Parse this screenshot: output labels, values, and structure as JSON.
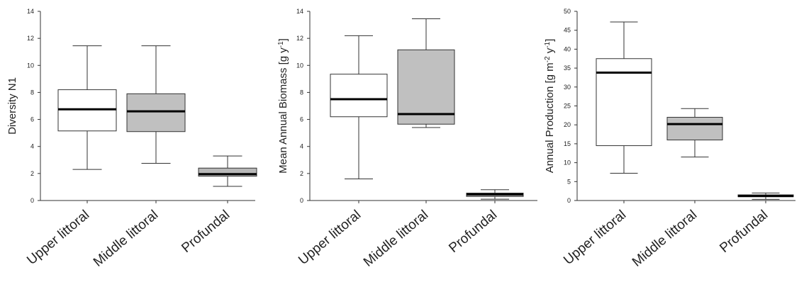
{
  "chart_data": [
    {
      "type": "box",
      "xlabel": "",
      "ylabel": "Diversity N1",
      "ylim": [
        0,
        14
      ],
      "yticks": [
        0,
        2,
        4,
        6,
        8,
        10,
        12,
        14
      ],
      "categories": [
        "Upper littoral",
        "Middle littoral",
        "Profundal"
      ],
      "boxes": [
        {
          "category": "Upper littoral",
          "min": 2.3,
          "q1": 5.15,
          "median": 6.75,
          "q3": 8.2,
          "max": 11.45,
          "fill": "#ffffff"
        },
        {
          "category": "Middle littoral",
          "min": 2.75,
          "q1": 5.1,
          "median": 6.6,
          "q3": 7.9,
          "max": 11.45,
          "fill": "#c0c0c0"
        },
        {
          "category": "Profundal",
          "min": 1.05,
          "q1": 1.8,
          "median": 1.95,
          "q3": 2.4,
          "max": 3.3,
          "fill": "#b8b8b8"
        }
      ]
    },
    {
      "type": "box",
      "xlabel": "",
      "ylabel": "Mean Annual Biomass [g y",
      "ylabel_sup": "-1",
      "ylabel_end": "]",
      "ylim": [
        0,
        14
      ],
      "yticks": [
        0,
        2,
        4,
        6,
        8,
        10,
        12,
        14
      ],
      "categories": [
        "Upper littoral",
        "Middle littoral",
        "Profundal"
      ],
      "boxes": [
        {
          "category": "Upper littoral",
          "min": 1.6,
          "q1": 6.2,
          "median": 7.5,
          "q3": 9.35,
          "max": 12.2,
          "fill": "#ffffff"
        },
        {
          "category": "Middle littoral",
          "min": 5.4,
          "q1": 5.65,
          "median": 6.4,
          "q3": 11.15,
          "max": 13.45,
          "fill": "#c0c0c0"
        },
        {
          "category": "Profundal",
          "min": 0.1,
          "q1": 0.3,
          "median": 0.45,
          "q3": 0.55,
          "max": 0.8,
          "fill": "#b8b8b8"
        }
      ]
    },
    {
      "type": "box",
      "xlabel": "",
      "ylabel": "Annual Production [g m",
      "ylabel_sup": "-2",
      "ylabel_mid": " y",
      "ylabel_sup2": "-1",
      "ylabel_end": "]",
      "ylim": [
        0,
        50
      ],
      "yticks": [
        0,
        5,
        10,
        15,
        20,
        25,
        30,
        35,
        40,
        45,
        50
      ],
      "categories": [
        "Upper littoral",
        "Middle littoral",
        "Profundal"
      ],
      "boxes": [
        {
          "category": "Upper littoral",
          "min": 7.2,
          "q1": 14.5,
          "median": 33.8,
          "q3": 37.5,
          "max": 47.2,
          "fill": "#ffffff"
        },
        {
          "category": "Middle littoral",
          "min": 11.5,
          "q1": 16.0,
          "median": 20.2,
          "q3": 22.0,
          "max": 24.3,
          "fill": "#c0c0c0"
        },
        {
          "category": "Profundal",
          "min": 0.3,
          "q1": 1.0,
          "median": 1.2,
          "q3": 1.5,
          "max": 2.0,
          "fill": "#b8b8b8"
        }
      ]
    }
  ]
}
